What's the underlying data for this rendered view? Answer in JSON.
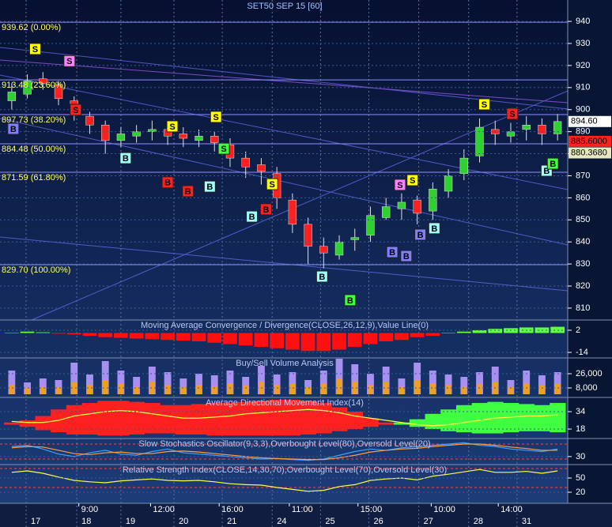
{
  "x_axis": {
    "xlim": [
      -0.5,
      35.5
    ],
    "date_ticks": [
      {
        "value": 0.92,
        "label": "17"
      },
      {
        "value": 4.17,
        "label": "18"
      },
      {
        "value": 7.0,
        "label": "19"
      },
      {
        "value": 10.4,
        "label": "20"
      },
      {
        "value": 13.5,
        "label": "21"
      },
      {
        "value": 16.7,
        "label": "24"
      },
      {
        "value": 19.8,
        "label": "25"
      },
      {
        "value": 22.9,
        "label": "26"
      },
      {
        "value": 26.1,
        "label": "27"
      },
      {
        "value": 29.3,
        "label": "28"
      },
      {
        "value": 32.4,
        "label": "31"
      }
    ],
    "time_ticks": [
      {
        "value": 4.3,
        "label": "9:00"
      },
      {
        "value": 8.9,
        "label": "12:00"
      },
      {
        "value": 13.3,
        "label": "16:00"
      },
      {
        "value": 17.8,
        "label": "11:00"
      },
      {
        "value": 22.2,
        "label": "15:00"
      },
      {
        "value": 26.9,
        "label": "10:00"
      },
      {
        "value": 31.2,
        "label": "14:00"
      }
    ]
  },
  "chart_data": [
    {
      "type": "candlestick",
      "title": "SET50 SEP 15   [60]",
      "ylim": [
        804.6,
        949.7
      ],
      "yticks": [
        940,
        930,
        920,
        910,
        900,
        890,
        880,
        870,
        860,
        850,
        840,
        830,
        820,
        810
      ],
      "up_color": "#30d030",
      "down_color": "#ff2020",
      "open": [
        904,
        907,
        914,
        911,
        904,
        897,
        893,
        886,
        888,
        890,
        891,
        889,
        886,
        888,
        884,
        878,
        875,
        871,
        859,
        848,
        838,
        834,
        841,
        843,
        851,
        855,
        859,
        854,
        863,
        871,
        879,
        891,
        888,
        891,
        893,
        889
      ],
      "high": [
        912,
        916,
        917,
        913,
        906,
        899,
        895,
        892,
        893,
        895,
        893,
        892,
        891,
        890,
        887,
        881,
        878,
        874,
        862,
        851,
        842,
        843,
        846,
        856,
        860,
        862,
        861,
        867,
        873,
        882,
        896,
        895,
        894,
        897,
        896,
        898
      ],
      "low": [
        900,
        905,
        909,
        902,
        895,
        889,
        880,
        883,
        885,
        886,
        884,
        883,
        883,
        881,
        874,
        869,
        866,
        855,
        844,
        830,
        828,
        832,
        836,
        840,
        850,
        850,
        848,
        850,
        860,
        868,
        876,
        884,
        885,
        886,
        884,
        886
      ],
      "close": [
        908,
        913,
        912,
        905,
        898,
        893,
        886,
        889,
        890,
        891,
        888,
        887,
        888,
        885,
        878,
        874,
        872,
        860,
        848,
        838,
        835,
        840,
        842,
        852,
        856,
        858,
        853,
        864,
        870,
        878,
        892,
        889,
        890,
        893,
        889,
        894.6
      ],
      "fib_levels": [
        {
          "value": 939.62,
          "label": "939.62 (0.00%)"
        },
        {
          "value": 913.48,
          "label": "913.48 (23.60%)"
        },
        {
          "value": 897.73,
          "label": "897.73 (38.20%)"
        },
        {
          "value": 884.48,
          "label": "884.48 (50.00%)"
        },
        {
          "value": 871.59,
          "label": "871.59 (61.80%)"
        },
        {
          "value": 829.7,
          "label": "829.70 (100.00%)"
        }
      ],
      "price_labels": [
        {
          "value": 894.6,
          "label": "894.60",
          "color": "#ffffff",
          "text_color": "#000000"
        },
        {
          "value": 885.6,
          "label": "885.6000",
          "color": "#ff2020",
          "text_color": "#000000"
        },
        {
          "value": 880.368,
          "label": "880.3680",
          "color": "#e8e8c0",
          "text_color": "#000000"
        }
      ],
      "signals": [
        {
          "label": "S",
          "x": 1.5,
          "y": 927.5,
          "color": "#ffff00"
        },
        {
          "label": "S",
          "x": 3.7,
          "y": 922,
          "color": "#ff80ff"
        },
        {
          "label": "B",
          "x": 0.1,
          "y": 891.3,
          "color": "#8080ff"
        },
        {
          "label": "S",
          "x": 4.1,
          "y": 899.9,
          "color": "#ff2020"
        },
        {
          "label": "S",
          "x": 10.3,
          "y": 892.4,
          "color": "#ffff00"
        },
        {
          "label": "S",
          "x": 13.1,
          "y": 896.7,
          "color": "#ffff00"
        },
        {
          "label": "S",
          "x": 13.6,
          "y": 882.3,
          "color": "#40ff40"
        },
        {
          "label": "B",
          "x": 7.3,
          "y": 878,
          "color": "#a0ffff"
        },
        {
          "label": "B",
          "x": 10,
          "y": 867,
          "color": "#ff2020"
        },
        {
          "label": "B",
          "x": 11.3,
          "y": 863,
          "color": "#ff2020"
        },
        {
          "label": "B",
          "x": 12.7,
          "y": 865.1,
          "color": "#a0ffff"
        },
        {
          "label": "B",
          "x": 15.4,
          "y": 851.5,
          "color": "#a0ffff"
        },
        {
          "label": "B",
          "x": 16.3,
          "y": 854.8,
          "color": "#ff2020"
        },
        {
          "label": "S",
          "x": 16.7,
          "y": 866.2,
          "color": "#ffff00"
        },
        {
          "label": "B",
          "x": 19.9,
          "y": 824.3,
          "color": "#a0ffff"
        },
        {
          "label": "B",
          "x": 21.7,
          "y": 813.6,
          "color": "#40ff40"
        },
        {
          "label": "S",
          "x": 24.9,
          "y": 865.9,
          "color": "#ff80ff"
        },
        {
          "label": "S",
          "x": 25.7,
          "y": 868,
          "color": "#ffff00"
        },
        {
          "label": "B",
          "x": 24.4,
          "y": 835.4,
          "color": "#8080ff"
        },
        {
          "label": "B",
          "x": 25.3,
          "y": 833.6,
          "color": "#8080ff"
        },
        {
          "label": "B",
          "x": 26.2,
          "y": 843.3,
          "color": "#8080ff"
        },
        {
          "label": "B",
          "x": 27.1,
          "y": 846.2,
          "color": "#a0ffff"
        },
        {
          "label": "S",
          "x": 30.3,
          "y": 902.4,
          "color": "#ffff00"
        },
        {
          "label": "S",
          "x": 32.1,
          "y": 898.1,
          "color": "#ff2020"
        },
        {
          "label": "B",
          "x": 34.3,
          "y": 872.3,
          "color": "#a0ffff"
        },
        {
          "label": "B",
          "x": 34.7,
          "y": 875.5,
          "color": "#40ff40"
        }
      ]
    },
    {
      "type": "bar",
      "title": "Moving Average Convergence / Divergence(CLOSE,26,12,9),Value Line(0)",
      "ylim": [
        -18,
        9.4
      ],
      "yticks": [
        2,
        -14
      ],
      "pos_color": "#60ff40",
      "neg_color": "#ff1010",
      "values": [
        0,
        1,
        0.5,
        -0.5,
        -1,
        -2,
        -3,
        -3.5,
        -4,
        -4.5,
        -5,
        -5.5,
        -6,
        -7,
        -8,
        -9,
        -10,
        -11,
        -12,
        -13,
        -13,
        -12,
        -10,
        -8,
        -6,
        -5,
        -3,
        -2,
        0,
        1,
        2,
        3,
        3.5,
        4,
        4,
        4.5
      ]
    },
    {
      "type": "bar",
      "title": "Buy/Sell Volume Analysis",
      "ylim": [
        0,
        46000
      ],
      "yticks": [
        {
          "value": 26000,
          "label": "26,000"
        },
        {
          "value": 8000,
          "label": "8,000"
        }
      ],
      "series": [
        {
          "color": "#a890f0",
          "values": [
            30000,
            15000,
            20000,
            18000,
            40000,
            25000,
            42000,
            30000,
            22000,
            35000,
            28000,
            20000,
            26000,
            24000,
            30000,
            22000,
            36000,
            25000,
            28000,
            18000,
            30000,
            45000,
            38000,
            26000,
            35000,
            20000,
            40000,
            30000,
            25000,
            22000,
            28000,
            35000,
            18000,
            30000,
            24000,
            28000
          ]
        },
        {
          "color": "#f0a020",
          "values": [
            12000,
            8000,
            10000,
            9000,
            15000,
            12000,
            18000,
            14000,
            10000,
            16000,
            12000,
            9000,
            12000,
            10000,
            14000,
            11000,
            16000,
            12000,
            13000,
            9000,
            14000,
            20000,
            16000,
            12000,
            15000,
            10000,
            18000,
            14000,
            12000,
            10000,
            13000,
            15000,
            9000,
            14000,
            11000,
            13000
          ]
        }
      ]
    },
    {
      "type": "area",
      "title": "Average Directional Movement Index(14)",
      "ylim": [
        9.3,
        47.1
      ],
      "yticks": [
        34,
        18
      ],
      "series": [
        {
          "color": "#40ff40",
          "values": [
            22,
            20,
            17,
            15,
            13,
            13,
            12,
            12,
            13,
            14,
            14,
            13,
            13,
            12,
            12,
            12,
            12,
            12,
            12,
            13,
            14,
            16,
            18,
            20,
            22,
            24,
            27,
            32,
            36,
            40,
            42,
            43,
            42,
            41,
            40,
            42
          ]
        },
        {
          "color": "#ff2020",
          "values": [
            24,
            26,
            30,
            36,
            40,
            42,
            44,
            44,
            43,
            42,
            40,
            40,
            41,
            42,
            42,
            43,
            44,
            45,
            45,
            44,
            42,
            38,
            34,
            28,
            24,
            22,
            20,
            18,
            16,
            15,
            14,
            14,
            15,
            16,
            16,
            15
          ]
        },
        {
          "color": "#ffff40",
          "values": [
            25,
            24,
            24,
            26,
            30,
            32,
            34,
            35,
            34,
            32,
            30,
            28,
            28,
            29,
            30,
            32,
            33,
            34,
            35,
            36,
            35,
            33,
            30,
            28,
            26,
            24,
            22,
            21,
            22,
            24,
            26,
            28,
            29,
            30,
            30,
            31
          ]
        }
      ]
    },
    {
      "type": "line",
      "title": "Slow Stochastics Oscillator(9,3,3),Overbought Level(80),Oversold Level(20)",
      "ylim": [
        -2,
        102
      ],
      "yticks": [
        30
      ],
      "levels": [
        80,
        20
      ],
      "series": [
        {
          "color": "#40a0ff",
          "values": [
            70,
            75,
            60,
            40,
            30,
            45,
            55,
            40,
            35,
            50,
            60,
            45,
            40,
            35,
            30,
            25,
            20,
            22,
            18,
            15,
            20,
            35,
            50,
            60,
            55,
            65,
            70,
            75,
            80,
            85,
            75,
            70,
            60,
            55,
            50,
            60
          ]
        },
        {
          "color": "#ffa040",
          "values": [
            65,
            70,
            68,
            55,
            42,
            38,
            45,
            48,
            42,
            42,
            50,
            52,
            48,
            42,
            36,
            30,
            25,
            22,
            20,
            18,
            18,
            25,
            35,
            48,
            55,
            60,
            63,
            70,
            75,
            80,
            80,
            75,
            68,
            62,
            55,
            55
          ]
        }
      ]
    },
    {
      "type": "line",
      "title": "Relative Strength Index(CLOSE,14,30,70),Overbought Level(70),Oversold Level(30)",
      "ylim": [
        -3.3,
        78.3
      ],
      "yticks": [
        50,
        20
      ],
      "levels": [
        70,
        30
      ],
      "series": [
        {
          "color": "#ffff40",
          "values": [
            62,
            65,
            60,
            52,
            45,
            42,
            40,
            44,
            46,
            48,
            45,
            44,
            45,
            42,
            38,
            36,
            35,
            30,
            26,
            22,
            24,
            32,
            36,
            45,
            48,
            50,
            46,
            54,
            58,
            63,
            68,
            62,
            62,
            64,
            60,
            65
          ]
        }
      ]
    }
  ]
}
